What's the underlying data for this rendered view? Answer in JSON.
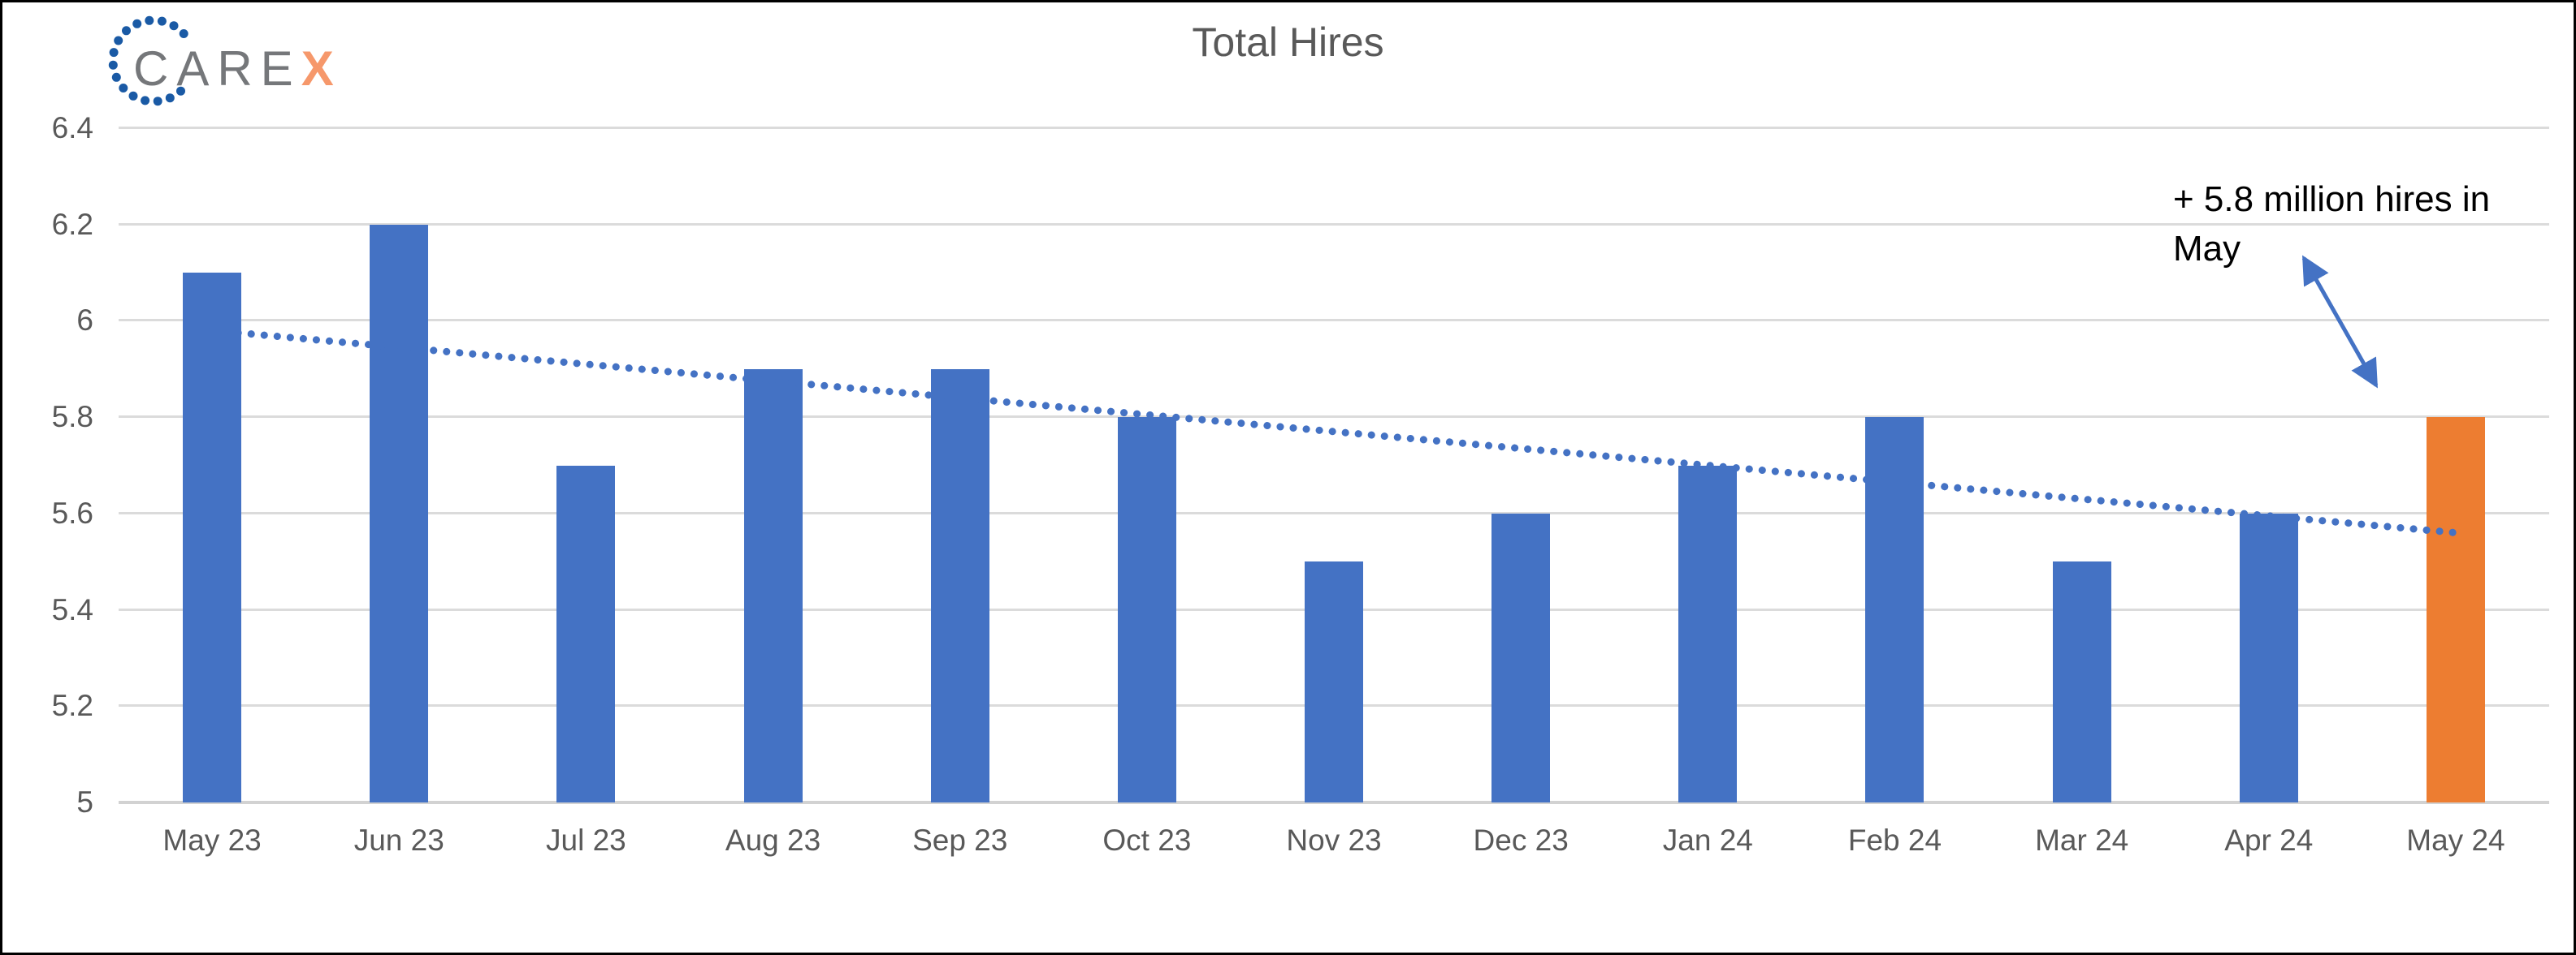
{
  "logo": {
    "text_gray": "CARE",
    "text_orange": "X",
    "dots_icon": "dotted-circle-icon"
  },
  "chart_data": {
    "type": "bar",
    "title": "Total Hires",
    "categories": [
      "May 23",
      "Jun 23",
      "Jul 23",
      "Aug 23",
      "Sep 23",
      "Oct 23",
      "Nov 23",
      "Dec 23",
      "Jan 24",
      "Feb 24",
      "Mar 24",
      "Apr 24",
      "May 24"
    ],
    "series": [
      {
        "name": "Total Hires (millions)",
        "values": [
          6.1,
          6.2,
          5.7,
          5.9,
          5.9,
          5.8,
          5.5,
          5.6,
          5.7,
          5.8,
          5.5,
          5.6,
          5.8
        ]
      }
    ],
    "highlight_index": 12,
    "ylim": [
      5,
      6.4
    ],
    "ytick_labels": [
      "6.4",
      "6.2",
      "6",
      "5.8",
      "5.6",
      "5.4",
      "5.2",
      "5"
    ],
    "ytick_values": [
      6.4,
      6.2,
      6.0,
      5.8,
      5.6,
      5.4,
      5.2,
      5.0
    ],
    "grid": true,
    "legend": "none",
    "trendline": {
      "type": "linear",
      "style": "dotted",
      "start_value": 5.98,
      "end_value": 5.56
    }
  },
  "annotation": {
    "lines": [
      "+ 5.8 million hires in",
      "May"
    ],
    "arrow_icon": "double-arrow"
  },
  "colors": {
    "bar_blue": "#4472C4",
    "highlight_orange": "#ED7D31",
    "trendline_blue": "#4472C4",
    "arrow_blue": "#4472C4",
    "gridline_gray": "#DBDBDB",
    "axis_line_gray": "#D2D2D2",
    "label_gray": "#595959",
    "annotation_black": "#000000",
    "logo_gray": "#75777A",
    "logo_orange": "#F6986B",
    "logo_dot_blue": "#1A5AA5"
  }
}
